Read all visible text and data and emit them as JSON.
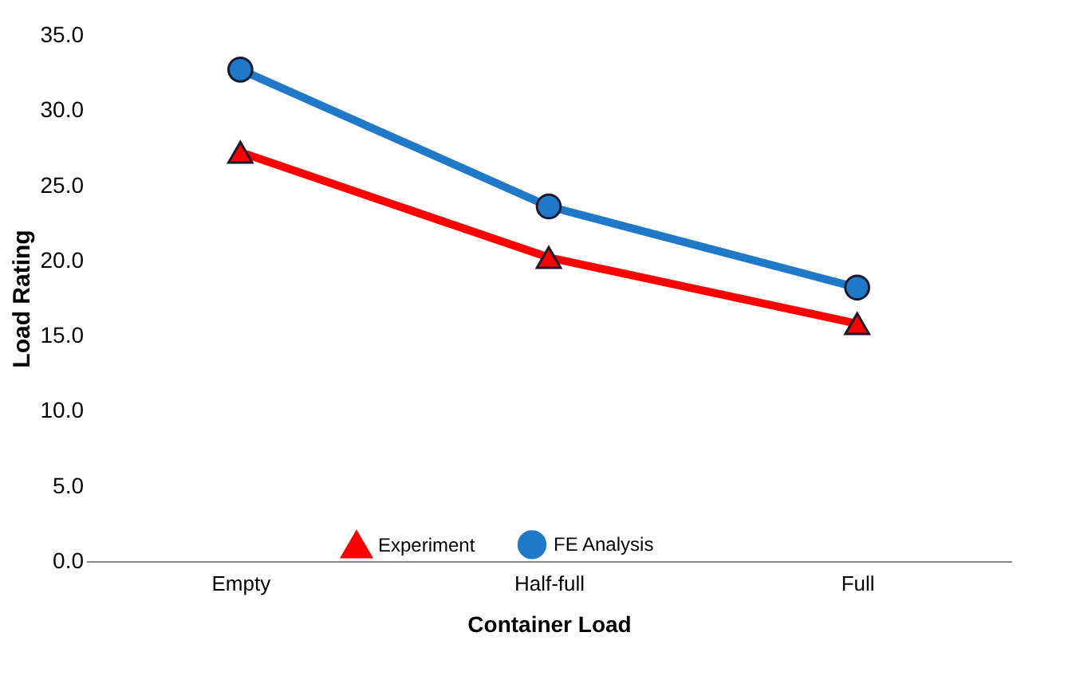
{
  "chart_data": {
    "type": "line",
    "xlabel": "Container Load",
    "ylabel": "Load Rating",
    "categories": [
      "Empty",
      "Half-full",
      "Full"
    ],
    "series": [
      {
        "name": "Experiment",
        "color": "#ff0000",
        "marker": "triangle",
        "values": [
          27.2,
          20.2,
          15.8
        ]
      },
      {
        "name": "FE Analysis",
        "color": "#1f78c8",
        "marker": "circle",
        "values": [
          32.7,
          23.6,
          18.2
        ]
      }
    ],
    "ylim": [
      0,
      35
    ],
    "yticks": [
      {
        "value": 0,
        "label": "0.0"
      },
      {
        "value": 5,
        "label": "5.0"
      },
      {
        "value": 10,
        "label": "10.0"
      },
      {
        "value": 15,
        "label": "15.0"
      },
      {
        "value": 20,
        "label": "20.0"
      },
      {
        "value": 25,
        "label": "25.0"
      },
      {
        "value": 30,
        "label": "30.0"
      },
      {
        "value": 35,
        "label": "35.0"
      }
    ],
    "legend": "bottom",
    "grid": false,
    "line_style": "solid"
  }
}
